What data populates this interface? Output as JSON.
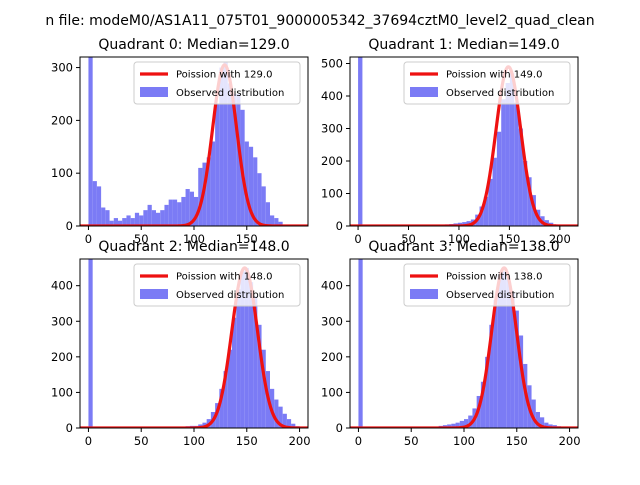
{
  "figure": {
    "suptitle": "n file: modeM0/AS1A11_075T01_9000005342_37694cztM0_level2_quad_clean"
  },
  "chart_data": [
    {
      "type": "histogram",
      "title": "Quadrant 0: Median=129.0",
      "xlim": [
        -8,
        208
      ],
      "ylim": [
        0,
        320
      ],
      "xticks": [
        0,
        50,
        100,
        150
      ],
      "yticks": [
        0,
        100,
        200,
        300
      ],
      "bin_width": 4,
      "hist": {
        "name": "Observed distribution",
        "color": "#7b7bf5",
        "bins": [
          [
            0,
            320
          ],
          [
            4,
            85
          ],
          [
            8,
            75
          ],
          [
            12,
            35
          ],
          [
            16,
            30
          ],
          [
            20,
            10
          ],
          [
            24,
            15
          ],
          [
            28,
            10
          ],
          [
            32,
            15
          ],
          [
            36,
            20
          ],
          [
            40,
            15
          ],
          [
            44,
            25
          ],
          [
            48,
            20
          ],
          [
            52,
            30
          ],
          [
            56,
            40
          ],
          [
            60,
            30
          ],
          [
            64,
            25
          ],
          [
            68,
            30
          ],
          [
            72,
            40
          ],
          [
            76,
            50
          ],
          [
            80,
            50
          ],
          [
            84,
            45
          ],
          [
            88,
            55
          ],
          [
            92,
            70
          ],
          [
            96,
            65
          ],
          [
            100,
            55
          ],
          [
            104,
            110
          ],
          [
            108,
            120
          ],
          [
            112,
            130
          ],
          [
            116,
            160
          ],
          [
            120,
            230
          ],
          [
            124,
            300
          ],
          [
            128,
            310
          ],
          [
            132,
            270
          ],
          [
            136,
            250
          ],
          [
            140,
            250
          ],
          [
            144,
            220
          ],
          [
            148,
            160
          ],
          [
            152,
            150
          ],
          [
            156,
            130
          ],
          [
            160,
            100
          ],
          [
            164,
            75
          ],
          [
            168,
            45
          ],
          [
            172,
            20
          ],
          [
            176,
            15
          ],
          [
            180,
            8
          ]
        ]
      },
      "poisson": {
        "name": "Poission with 129.0",
        "color": "#ee1111",
        "mean": 129.0,
        "peak": 305,
        "sigma": 11.36
      }
    },
    {
      "type": "histogram",
      "title": "Quadrant 1: Median=149.0",
      "xlim": [
        -8,
        218
      ],
      "ylim": [
        0,
        520
      ],
      "xticks": [
        0,
        50,
        100,
        150,
        200
      ],
      "yticks": [
        0,
        100,
        200,
        300,
        400,
        500
      ],
      "bin_width": 4.3,
      "hist": {
        "name": "Observed distribution",
        "color": "#7b7bf5",
        "bins": [
          [
            0,
            520
          ],
          [
            86,
            5
          ],
          [
            90.3,
            6
          ],
          [
            94.6,
            8
          ],
          [
            98.9,
            10
          ],
          [
            103.2,
            12
          ],
          [
            107.5,
            15
          ],
          [
            111.8,
            20
          ],
          [
            116.1,
            35
          ],
          [
            120.4,
            60
          ],
          [
            124.7,
            90
          ],
          [
            129,
            145
          ],
          [
            133.3,
            210
          ],
          [
            137.6,
            290
          ],
          [
            141.9,
            390
          ],
          [
            146.2,
            440
          ],
          [
            150.5,
            470
          ],
          [
            154.8,
            380
          ],
          [
            159.1,
            300
          ],
          [
            163.4,
            200
          ],
          [
            167.7,
            150
          ],
          [
            172,
            95
          ],
          [
            176.3,
            50
          ],
          [
            180.6,
            30
          ],
          [
            184.9,
            18
          ],
          [
            189.2,
            10
          ],
          [
            193.5,
            5
          ],
          [
            197.8,
            3
          ]
        ]
      },
      "poisson": {
        "name": "Poission with 149.0",
        "color": "#ee1111",
        "mean": 149.0,
        "peak": 490,
        "sigma": 12.21
      }
    },
    {
      "type": "histogram",
      "title": "Quadrant 2: Median=148.0",
      "xlim": [
        -8,
        208
      ],
      "ylim": [
        0,
        475
      ],
      "xticks": [
        0,
        50,
        100,
        150,
        200
      ],
      "yticks": [
        0,
        100,
        200,
        300,
        400
      ],
      "bin_width": 4,
      "hist": {
        "name": "Observed distribution",
        "color": "#7b7bf5",
        "bins": [
          [
            0,
            475
          ],
          [
            84,
            4
          ],
          [
            88,
            4
          ],
          [
            92,
            5
          ],
          [
            96,
            6
          ],
          [
            100,
            6
          ],
          [
            104,
            10
          ],
          [
            108,
            15
          ],
          [
            112,
            25
          ],
          [
            116,
            45
          ],
          [
            120,
            70
          ],
          [
            124,
            110
          ],
          [
            128,
            160
          ],
          [
            132,
            220
          ],
          [
            136,
            310
          ],
          [
            140,
            390
          ],
          [
            144,
            440
          ],
          [
            148,
            450
          ],
          [
            152,
            410
          ],
          [
            156,
            370
          ],
          [
            160,
            290
          ],
          [
            164,
            220
          ],
          [
            168,
            160
          ],
          [
            172,
            110
          ],
          [
            176,
            80
          ],
          [
            180,
            60
          ],
          [
            184,
            40
          ],
          [
            188,
            25
          ],
          [
            192,
            12
          ],
          [
            196,
            5
          ]
        ]
      },
      "poisson": {
        "name": "Poission with 148.0",
        "color": "#ee1111",
        "mean": 148.0,
        "peak": 450,
        "sigma": 12.17
      }
    },
    {
      "type": "histogram",
      "title": "Quadrant 3: Median=138.0",
      "xlim": [
        -8,
        208
      ],
      "ylim": [
        0,
        475
      ],
      "xticks": [
        0,
        50,
        100,
        150,
        200
      ],
      "yticks": [
        0,
        100,
        200,
        300,
        400
      ],
      "bin_width": 4,
      "hist": {
        "name": "Observed distribution",
        "color": "#7b7bf5",
        "bins": [
          [
            0,
            475
          ],
          [
            76,
            6
          ],
          [
            80,
            8
          ],
          [
            84,
            10
          ],
          [
            88,
            12
          ],
          [
            92,
            15
          ],
          [
            96,
            20
          ],
          [
            100,
            25
          ],
          [
            104,
            35
          ],
          [
            108,
            55
          ],
          [
            112,
            90
          ],
          [
            116,
            130
          ],
          [
            120,
            200
          ],
          [
            124,
            290
          ],
          [
            128,
            360
          ],
          [
            132,
            430
          ],
          [
            136,
            440
          ],
          [
            140,
            420
          ],
          [
            144,
            380
          ],
          [
            148,
            330
          ],
          [
            152,
            260
          ],
          [
            156,
            180
          ],
          [
            160,
            120
          ],
          [
            164,
            80
          ],
          [
            168,
            45
          ],
          [
            172,
            30
          ],
          [
            176,
            15
          ],
          [
            180,
            10
          ],
          [
            184,
            8
          ],
          [
            188,
            5
          ]
        ]
      },
      "poisson": {
        "name": "Poission with 138.0",
        "color": "#ee1111",
        "mean": 138.0,
        "peak": 450,
        "sigma": 11.75
      }
    }
  ]
}
